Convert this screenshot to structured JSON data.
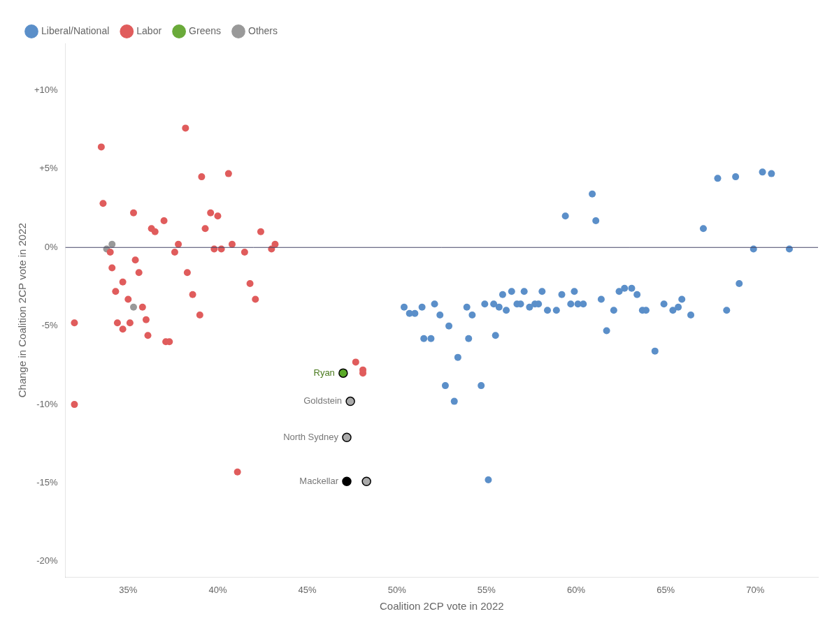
{
  "chart_data": {
    "type": "scatter",
    "x_label": "Coalition 2CP vote in 2022",
    "y_label": "Change in Coalition 2CP vote in 2022",
    "xlim": [
      0.315,
      0.735
    ],
    "ylim": [
      -0.21,
      0.13
    ],
    "xticks": [
      {
        "value": 0.35,
        "label": "35%"
      },
      {
        "value": 0.4,
        "label": "40%"
      },
      {
        "value": 0.45,
        "label": "45%"
      },
      {
        "value": 0.5,
        "label": "50%"
      },
      {
        "value": 0.55,
        "label": "55%"
      },
      {
        "value": 0.6,
        "label": "60%"
      },
      {
        "value": 0.65,
        "label": "65%"
      },
      {
        "value": 0.7,
        "label": "70%"
      }
    ],
    "yticks": [
      {
        "value": -0.2,
        "label": "-20%"
      },
      {
        "value": -0.15,
        "label": "-15%"
      },
      {
        "value": -0.1,
        "label": "-10%"
      },
      {
        "value": -0.05,
        "label": "-5%"
      },
      {
        "value": 0.0,
        "label": "0%"
      },
      {
        "value": 0.05,
        "label": "+5%"
      },
      {
        "value": 0.1,
        "label": "+10%"
      }
    ],
    "grid": false,
    "legend": "top left",
    "reference_lines": [
      {
        "y": 0,
        "color": "#444466"
      }
    ],
    "series": [
      {
        "name": "Liberal/National",
        "color": "#5b8fc9",
        "x": [
          0.504,
          0.507,
          0.51,
          0.514,
          0.515,
          0.519,
          0.521,
          0.524,
          0.527,
          0.529,
          0.532,
          0.534,
          0.539,
          0.54,
          0.542,
          0.547,
          0.549,
          0.551,
          0.554,
          0.555,
          0.557,
          0.559,
          0.561,
          0.564,
          0.567,
          0.569,
          0.571,
          0.574,
          0.577,
          0.579,
          0.581,
          0.584,
          0.589,
          0.592,
          0.594,
          0.597,
          0.599,
          0.601,
          0.604,
          0.609,
          0.611,
          0.614,
          0.617,
          0.621,
          0.624,
          0.627,
          0.631,
          0.634,
          0.637,
          0.639,
          0.644,
          0.649,
          0.654,
          0.657,
          0.659,
          0.664,
          0.671,
          0.679,
          0.684,
          0.689,
          0.691,
          0.699,
          0.704,
          0.709,
          0.719
        ],
        "values": [
          -0.038,
          -0.042,
          -0.042,
          -0.038,
          -0.058,
          -0.058,
          -0.036,
          -0.043,
          -0.088,
          -0.05,
          -0.098,
          -0.07,
          -0.038,
          -0.058,
          -0.043,
          -0.088,
          -0.036,
          -0.148,
          -0.036,
          -0.056,
          -0.038,
          -0.03,
          -0.04,
          -0.028,
          -0.036,
          -0.036,
          -0.028,
          -0.038,
          -0.036,
          -0.036,
          -0.028,
          -0.04,
          -0.04,
          -0.03,
          0.02,
          -0.036,
          -0.028,
          -0.036,
          -0.036,
          0.034,
          0.017,
          -0.033,
          -0.053,
          -0.04,
          -0.028,
          -0.026,
          -0.026,
          -0.03,
          -0.04,
          -0.04,
          -0.066,
          -0.036,
          -0.04,
          -0.038,
          -0.033,
          -0.043,
          0.012,
          0.044,
          -0.04,
          0.045,
          -0.023,
          -0.001,
          0.048,
          0.047,
          -0.001
        ]
      },
      {
        "name": "Labor",
        "color": "#e05c5c",
        "x": [
          0.32,
          0.32,
          0.335,
          0.336,
          0.34,
          0.341,
          0.343,
          0.344,
          0.347,
          0.347,
          0.35,
          0.351,
          0.353,
          0.354,
          0.356,
          0.358,
          0.36,
          0.361,
          0.363,
          0.365,
          0.37,
          0.371,
          0.373,
          0.376,
          0.378,
          0.382,
          0.383,
          0.386,
          0.39,
          0.391,
          0.393,
          0.396,
          0.398,
          0.4,
          0.402,
          0.406,
          0.408,
          0.411,
          0.415,
          0.418,
          0.421,
          0.424,
          0.43,
          0.432,
          0.477,
          0.481,
          0.481
        ],
        "values": [
          -0.048,
          -0.1,
          0.064,
          0.028,
          -0.003,
          -0.013,
          -0.028,
          -0.048,
          -0.052,
          -0.022,
          -0.033,
          -0.048,
          0.022,
          -0.008,
          -0.016,
          -0.038,
          -0.046,
          -0.056,
          0.012,
          0.01,
          0.017,
          -0.06,
          -0.06,
          -0.003,
          0.002,
          0.076,
          -0.016,
          -0.03,
          -0.043,
          0.045,
          0.012,
          0.022,
          -0.001,
          0.02,
          -0.001,
          0.047,
          0.002,
          -0.143,
          -0.003,
          -0.023,
          -0.033,
          0.01,
          -0.001,
          0.002,
          -0.073,
          -0.08,
          -0.078
        ]
      },
      {
        "name": "Greens",
        "color": "#6aaa3a",
        "x": [],
        "values": []
      },
      {
        "name": "Others",
        "color": "#999999",
        "x": [
          0.338,
          0.341,
          0.353
        ],
        "values": [
          -0.001,
          0.002,
          -0.038
        ]
      },
      {
        "colors": [
          "#5aaa28",
          "#aaaaaa",
          "#aaaaaa",
          "#000000",
          "#aaaaaa"
        ],
        "edge_color": "#000000",
        "x": [
          0.47,
          0.474,
          0.472,
          0.472,
          0.483
        ],
        "values": [
          -0.08,
          -0.098,
          -0.121,
          -0.149,
          -0.149
        ],
        "point_labels": [
          "Ryan",
          "Goldstein",
          "North Sydney",
          "Mackellar",
          null
        ],
        "label_colors": [
          "#4a7a1e",
          "#777777",
          "#777777",
          "#777777",
          null
        ]
      }
    ]
  }
}
